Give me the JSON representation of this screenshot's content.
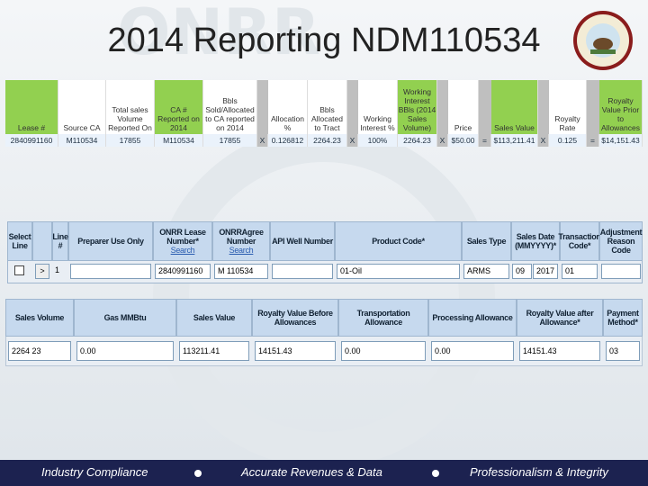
{
  "header": {
    "title": "2014 Reporting NDM110534"
  },
  "table1": {
    "cells": [
      {
        "header": "Lease #",
        "value": "2840991160"
      },
      {
        "header": "Source CA",
        "value": "M110534"
      },
      {
        "header": "Total sales Volume Reported On",
        "value": "17855"
      },
      {
        "header": "CA # Reported on 2014",
        "value": "M110534"
      },
      {
        "header": "Bbls Sold/Allocated to CA reported on 2014",
        "value": "17855"
      },
      {
        "value": "X"
      },
      {
        "header": "Allocation %",
        "value": "0.126812"
      },
      {
        "header": "Bbls Allocated to Tract",
        "value": "2264.23"
      },
      {
        "value": "X"
      },
      {
        "header": "Working Interest %",
        "value": "100%"
      },
      {
        "header": "Working Interest BBls (2014 Sales Volume)",
        "value": "2264.23"
      },
      {
        "value": "X"
      },
      {
        "header": "Price",
        "value": "$50.00"
      },
      {
        "value": "="
      },
      {
        "header": "Sales Value",
        "value": "$113,211.41"
      },
      {
        "value": "X"
      },
      {
        "header": "Royalty Rate",
        "value": "0.125"
      },
      {
        "value": "="
      },
      {
        "header": "Royalty Value Prior to Allowances",
        "value": "$14,151.43"
      }
    ]
  },
  "form1": {
    "cells": [
      {
        "header": "Select Line"
      },
      {
        "value": ">"
      },
      {
        "header": "Line #",
        "value": "1"
      },
      {
        "header": "Preparer Use Only"
      },
      {
        "header": "ONRR Lease Number*",
        "link": "Search",
        "value": "2840991160"
      },
      {
        "header": "ONRRAgree Number",
        "link": "Search",
        "value": "M 110534"
      },
      {
        "header": "API Well Number"
      },
      {
        "header": "Product Code*",
        "value": "01-Oil"
      },
      {
        "header": "Sales Type",
        "value": "ARMS"
      },
      {
        "header": "Sales Date (MMYYYY)*",
        "value": "09",
        "value2": "2017"
      },
      {
        "header": "Transaction Code*",
        "value": "01"
      },
      {
        "header": "Adjustment Reason Code"
      }
    ]
  },
  "form2": {
    "cells": [
      {
        "header": "Sales Volume",
        "value": "2264 23"
      },
      {
        "header": "Gas MMBtu",
        "value": "0.00"
      },
      {
        "header": "Sales Value",
        "value": "113211.41"
      },
      {
        "header": "Royalty Value Before Allowances",
        "value": "14151.43"
      },
      {
        "header": "Transportation Allowance",
        "value": "0.00"
      },
      {
        "header": "Processing Allowance",
        "value": "0.00"
      },
      {
        "header": "Royalty Value after Allowance*",
        "value": "14151.43"
      },
      {
        "header": "Payment Method*",
        "value": "03"
      }
    ]
  },
  "footer": {
    "items": [
      "Industry Compliance",
      "Accurate Revenues & Data",
      "Professionalism & Integrity"
    ]
  }
}
